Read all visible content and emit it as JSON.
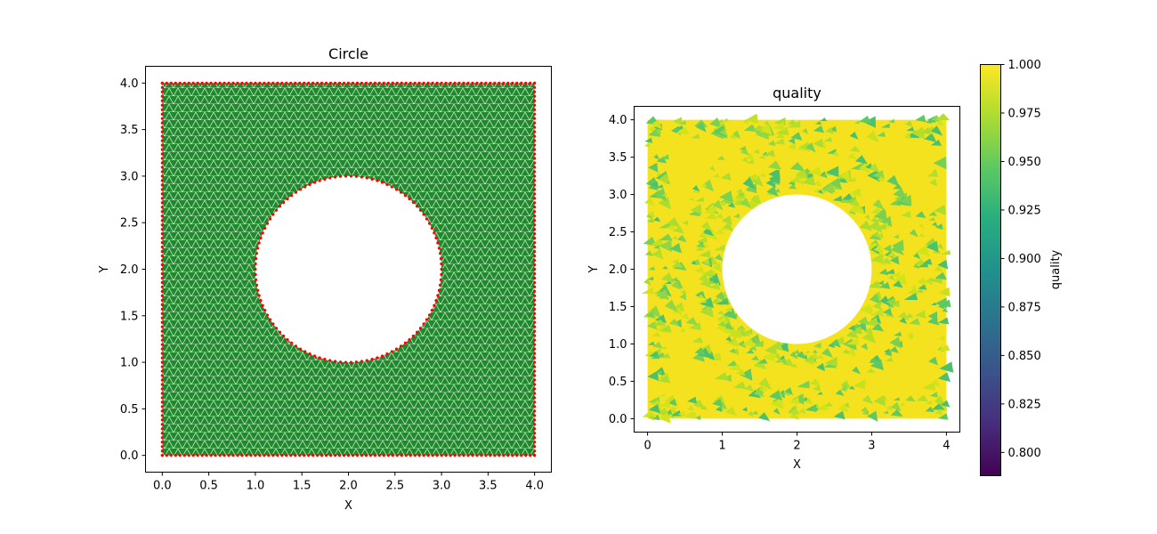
{
  "chart_data": [
    {
      "type": "mesh",
      "title": "Circle",
      "xlabel": "X",
      "ylabel": "Y",
      "xlim": [
        -0.18,
        4.18
      ],
      "ylim": [
        -0.18,
        4.18
      ],
      "xticks": [
        "0.0",
        "0.5",
        "1.0",
        "1.5",
        "2.0",
        "2.5",
        "3.0",
        "3.5",
        "4.0"
      ],
      "yticks": [
        "0.0",
        "0.5",
        "1.0",
        "1.5",
        "2.0",
        "2.5",
        "3.0",
        "3.5",
        "4.0"
      ],
      "domain": {
        "xmin": 0,
        "xmax": 4,
        "ymin": 0,
        "ymax": 4
      },
      "hole": {
        "cx": 2.0,
        "cy": 2.0,
        "r": 1.0
      },
      "colors": {
        "mesh_fill": "#228B22",
        "edges": "#ffffff",
        "boundary_nodes": "#ff0000"
      }
    },
    {
      "type": "heatmap",
      "title": "quality",
      "xlabel": "X",
      "ylabel": "Y",
      "xlim": [
        -0.18,
        4.18
      ],
      "ylim": [
        -0.18,
        4.18
      ],
      "xticks": [
        "0",
        "1",
        "2",
        "3",
        "4"
      ],
      "yticks": [
        "0.0",
        "0.5",
        "1.0",
        "1.5",
        "2.0",
        "2.5",
        "3.0",
        "3.5",
        "4.0"
      ],
      "domain": {
        "xmin": 0,
        "xmax": 4,
        "ymin": 0,
        "ymax": 4
      },
      "hole": {
        "cx": 2.0,
        "cy": 2.0,
        "r": 1.0
      },
      "colorbar": {
        "label": "quality",
        "min": 0.788,
        "max": 1.0,
        "ticks": [
          "0.800",
          "0.825",
          "0.850",
          "0.875",
          "0.900",
          "0.925",
          "0.950",
          "0.975",
          "1.000"
        ],
        "colormap": "viridis"
      }
    }
  ]
}
